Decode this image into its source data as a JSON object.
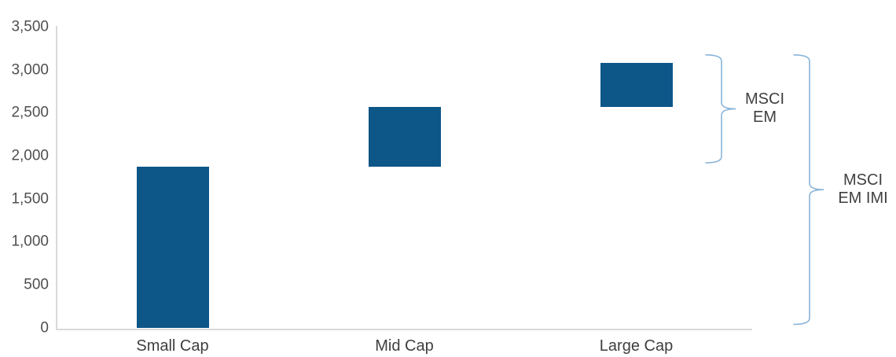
{
  "chart_data": {
    "type": "bar",
    "subtype": "floating-waterfall",
    "title": "",
    "xlabel": "",
    "ylabel": "",
    "grid": false,
    "legend": "none",
    "ylim": [
      0,
      3500
    ],
    "categories": [
      "Small Cap",
      "Mid Cap",
      "Large Cap"
    ],
    "segments": [
      {
        "category": "Small Cap",
        "from": 0,
        "to": 1880
      },
      {
        "category": "Mid Cap",
        "from": 1880,
        "to": 2575
      },
      {
        "category": "Large Cap",
        "from": 2575,
        "to": 3090
      }
    ],
    "yticks": [
      {
        "value": 0,
        "label": "0"
      },
      {
        "value": 500,
        "label": "500"
      },
      {
        "value": 1000,
        "label": "1,000"
      },
      {
        "value": 1500,
        "label": "1,500"
      },
      {
        "value": 2000,
        "label": "2,000"
      },
      {
        "value": 2500,
        "label": "2,500"
      },
      {
        "value": 3000,
        "label": "3,000"
      },
      {
        "value": 3500,
        "label": "3,500"
      }
    ],
    "annotations": [
      {
        "label": "MSCI EM",
        "lines": [
          "MSCI",
          "EM"
        ],
        "covers": [
          "Mid Cap",
          "Large Cap"
        ],
        "range": {
          "from": 1880,
          "to": 3090
        }
      },
      {
        "label": "MSCI EM IMI",
        "lines": [
          "MSCI",
          "EM IMI"
        ],
        "covers": [
          "Small Cap",
          "Mid Cap",
          "Large Cap"
        ],
        "range": {
          "from": 0,
          "to": 3090
        }
      }
    ],
    "colors": {
      "bar": "#0d5688",
      "brace": "#8ab4d8",
      "axis_line": "#d9d9d9",
      "tick_text": "#4f4f4f",
      "label_text": "#3f3f3f"
    }
  }
}
